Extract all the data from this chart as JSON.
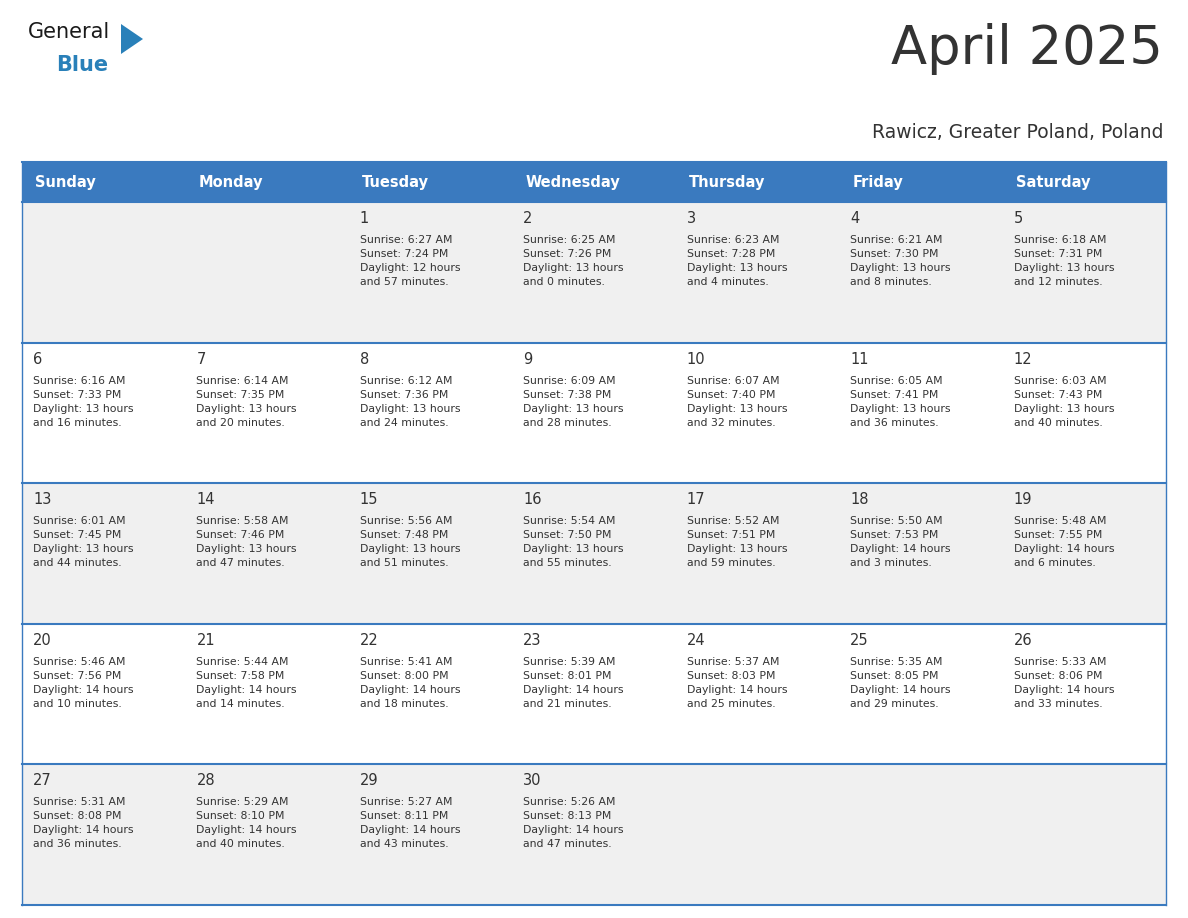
{
  "title": "April 2025",
  "subtitle": "Rawicz, Greater Poland, Poland",
  "header_bg": "#3a7abf",
  "header_text_color": "#ffffff",
  "row_bg_light": "#f0f0f0",
  "row_bg_white": "#ffffff",
  "divider_color": "#3a7abf",
  "text_color": "#333333",
  "day_headers": [
    "Sunday",
    "Monday",
    "Tuesday",
    "Wednesday",
    "Thursday",
    "Friday",
    "Saturday"
  ],
  "weeks": [
    [
      {
        "day": "",
        "info": ""
      },
      {
        "day": "",
        "info": ""
      },
      {
        "day": "1",
        "info": "Sunrise: 6:27 AM\nSunset: 7:24 PM\nDaylight: 12 hours\nand 57 minutes."
      },
      {
        "day": "2",
        "info": "Sunrise: 6:25 AM\nSunset: 7:26 PM\nDaylight: 13 hours\nand 0 minutes."
      },
      {
        "day": "3",
        "info": "Sunrise: 6:23 AM\nSunset: 7:28 PM\nDaylight: 13 hours\nand 4 minutes."
      },
      {
        "day": "4",
        "info": "Sunrise: 6:21 AM\nSunset: 7:30 PM\nDaylight: 13 hours\nand 8 minutes."
      },
      {
        "day": "5",
        "info": "Sunrise: 6:18 AM\nSunset: 7:31 PM\nDaylight: 13 hours\nand 12 minutes."
      }
    ],
    [
      {
        "day": "6",
        "info": "Sunrise: 6:16 AM\nSunset: 7:33 PM\nDaylight: 13 hours\nand 16 minutes."
      },
      {
        "day": "7",
        "info": "Sunrise: 6:14 AM\nSunset: 7:35 PM\nDaylight: 13 hours\nand 20 minutes."
      },
      {
        "day": "8",
        "info": "Sunrise: 6:12 AM\nSunset: 7:36 PM\nDaylight: 13 hours\nand 24 minutes."
      },
      {
        "day": "9",
        "info": "Sunrise: 6:09 AM\nSunset: 7:38 PM\nDaylight: 13 hours\nand 28 minutes."
      },
      {
        "day": "10",
        "info": "Sunrise: 6:07 AM\nSunset: 7:40 PM\nDaylight: 13 hours\nand 32 minutes."
      },
      {
        "day": "11",
        "info": "Sunrise: 6:05 AM\nSunset: 7:41 PM\nDaylight: 13 hours\nand 36 minutes."
      },
      {
        "day": "12",
        "info": "Sunrise: 6:03 AM\nSunset: 7:43 PM\nDaylight: 13 hours\nand 40 minutes."
      }
    ],
    [
      {
        "day": "13",
        "info": "Sunrise: 6:01 AM\nSunset: 7:45 PM\nDaylight: 13 hours\nand 44 minutes."
      },
      {
        "day": "14",
        "info": "Sunrise: 5:58 AM\nSunset: 7:46 PM\nDaylight: 13 hours\nand 47 minutes."
      },
      {
        "day": "15",
        "info": "Sunrise: 5:56 AM\nSunset: 7:48 PM\nDaylight: 13 hours\nand 51 minutes."
      },
      {
        "day": "16",
        "info": "Sunrise: 5:54 AM\nSunset: 7:50 PM\nDaylight: 13 hours\nand 55 minutes."
      },
      {
        "day": "17",
        "info": "Sunrise: 5:52 AM\nSunset: 7:51 PM\nDaylight: 13 hours\nand 59 minutes."
      },
      {
        "day": "18",
        "info": "Sunrise: 5:50 AM\nSunset: 7:53 PM\nDaylight: 14 hours\nand 3 minutes."
      },
      {
        "day": "19",
        "info": "Sunrise: 5:48 AM\nSunset: 7:55 PM\nDaylight: 14 hours\nand 6 minutes."
      }
    ],
    [
      {
        "day": "20",
        "info": "Sunrise: 5:46 AM\nSunset: 7:56 PM\nDaylight: 14 hours\nand 10 minutes."
      },
      {
        "day": "21",
        "info": "Sunrise: 5:44 AM\nSunset: 7:58 PM\nDaylight: 14 hours\nand 14 minutes."
      },
      {
        "day": "22",
        "info": "Sunrise: 5:41 AM\nSunset: 8:00 PM\nDaylight: 14 hours\nand 18 minutes."
      },
      {
        "day": "23",
        "info": "Sunrise: 5:39 AM\nSunset: 8:01 PM\nDaylight: 14 hours\nand 21 minutes."
      },
      {
        "day": "24",
        "info": "Sunrise: 5:37 AM\nSunset: 8:03 PM\nDaylight: 14 hours\nand 25 minutes."
      },
      {
        "day": "25",
        "info": "Sunrise: 5:35 AM\nSunset: 8:05 PM\nDaylight: 14 hours\nand 29 minutes."
      },
      {
        "day": "26",
        "info": "Sunrise: 5:33 AM\nSunset: 8:06 PM\nDaylight: 14 hours\nand 33 minutes."
      }
    ],
    [
      {
        "day": "27",
        "info": "Sunrise: 5:31 AM\nSunset: 8:08 PM\nDaylight: 14 hours\nand 36 minutes."
      },
      {
        "day": "28",
        "info": "Sunrise: 5:29 AM\nSunset: 8:10 PM\nDaylight: 14 hours\nand 40 minutes."
      },
      {
        "day": "29",
        "info": "Sunrise: 5:27 AM\nSunset: 8:11 PM\nDaylight: 14 hours\nand 43 minutes."
      },
      {
        "day": "30",
        "info": "Sunrise: 5:26 AM\nSunset: 8:13 PM\nDaylight: 14 hours\nand 47 minutes."
      },
      {
        "day": "",
        "info": ""
      },
      {
        "day": "",
        "info": ""
      },
      {
        "day": "",
        "info": ""
      }
    ]
  ],
  "logo_color_general": "#1a1a1a",
  "logo_color_blue": "#2980b9",
  "logo_triangle_color": "#2980b9"
}
